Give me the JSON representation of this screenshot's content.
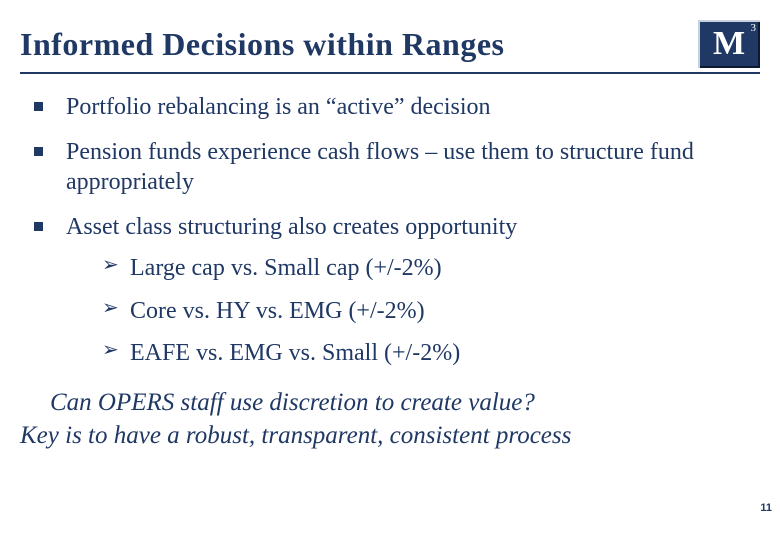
{
  "title": "Informed Decisions within Ranges",
  "logo": {
    "letter": "M",
    "exponent": "3"
  },
  "bullets": [
    {
      "text": "Portfolio rebalancing is an “active” decision"
    },
    {
      "text": "Pension funds experience cash flows – use them to structure fund appropriately"
    },
    {
      "text": "Asset class structuring also creates opportunity",
      "sub": [
        "Large cap vs. Small cap (+/-2%)",
        "Core vs. HY vs. EMG (+/-2%)",
        "EAFE vs. EMG vs. Small (+/-2%)"
      ]
    }
  ],
  "closing": {
    "line1": "Can OPERS staff use discretion to create value?",
    "line2": "Key is to have a robust, transparent, consistent process"
  },
  "page_number": "11",
  "colors": {
    "primary": "#1f3864",
    "background": "#ffffff"
  }
}
